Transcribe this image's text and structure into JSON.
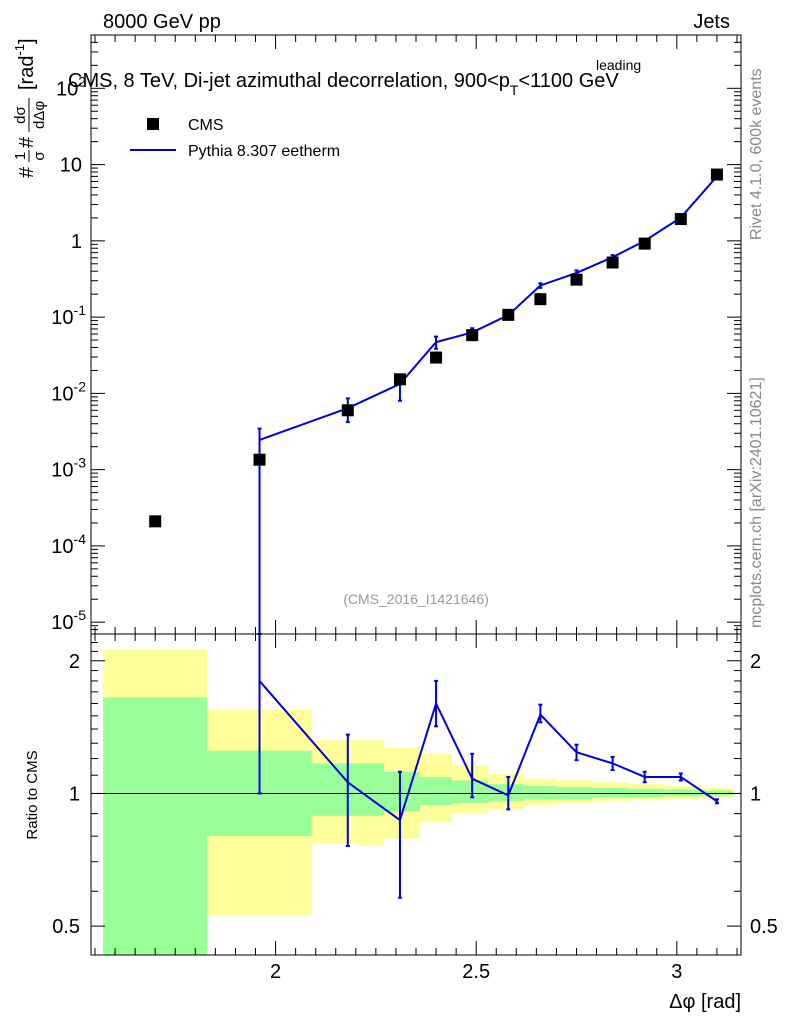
{
  "header": {
    "left_label": "8000 GeV pp",
    "right_label": "Jets"
  },
  "chart_data": [
    {
      "type": "scatter",
      "panel": "main",
      "title_prefix": "CMS, 8 TeV, Di-jet azimuthal decorrelation, 900<p",
      "title_sup": "leading",
      "title_sub": "T",
      "title_suffix": "<1100 GeV",
      "yscale": "log",
      "ylim": [
        7e-06,
        500
      ],
      "xlim": [
        1.54,
        3.16
      ],
      "ylabel": "#frac{1}{σ}#frac{dσ}{dΔφ} [rad⁻¹]",
      "ylabel_parts": {
        "lead": "#",
        "frac1_num": "1",
        "frac1_den": "σ",
        "hash2": "#",
        "frac2_num": "dσ",
        "frac2_den": "dΔφ",
        "unit": "[rad",
        "unit_sup": "-1",
        "unit_close": "]"
      },
      "y_ticks": [
        {
          "base": "10",
          "exp": "-5",
          "value": 1e-05
        },
        {
          "base": "10",
          "exp": "-4",
          "value": 0.0001
        },
        {
          "base": "10",
          "exp": "-3",
          "value": 0.001
        },
        {
          "base": "10",
          "exp": "-2",
          "value": 0.01
        },
        {
          "base": "10",
          "exp": "-1",
          "value": 0.1
        },
        {
          "base": "1",
          "exp": "",
          "value": 1
        },
        {
          "base": "10",
          "exp": "",
          "value": 10
        },
        {
          "base": "10",
          "exp": "2",
          "value": 100
        }
      ],
      "legend": [
        {
          "name": "CMS",
          "marker": "square",
          "color": "#000000"
        },
        {
          "name": "Pythia 8.307 eetherm",
          "marker": "line",
          "color": "#0000dd"
        }
      ],
      "series": [
        {
          "name": "CMS",
          "x": [
            1.7,
            1.96,
            2.18,
            2.31,
            2.4,
            2.49,
            2.58,
            2.66,
            2.75,
            2.84,
            2.92,
            3.01,
            3.1
          ],
          "y": [
            0.00021,
            0.00135,
            0.006,
            0.0153,
            0.0295,
            0.058,
            0.107,
            0.172,
            0.31,
            0.52,
            0.92,
            1.93,
            7.4
          ]
        },
        {
          "name": "Pythia 8.307 eetherm",
          "x": [
            1.96,
            2.18,
            2.31,
            2.4,
            2.49,
            2.58,
            2.66,
            2.75,
            2.84,
            2.92,
            3.01,
            3.1
          ],
          "y": [
            0.00245,
            0.0064,
            0.0133,
            0.047,
            0.063,
            0.106,
            0.26,
            0.38,
            0.61,
            1.0,
            2.02,
            7.0
          ],
          "y_err_low": [
            0.00245,
            0.0022,
            0.0053,
            0.0085,
            0.0085,
            0.012,
            0.018,
            0.03,
            0.04,
            0.05,
            0.08,
            0.2
          ],
          "y_err_high": [
            0.001,
            0.0022,
            0.0026,
            0.0085,
            0.0085,
            0.012,
            0.018,
            0.03,
            0.04,
            0.05,
            0.08,
            0.2
          ]
        }
      ],
      "annotation": "(CMS_2016_I1421646)"
    },
    {
      "type": "line",
      "panel": "ratio",
      "ylabel": "Ratio to CMS",
      "yscale": "log",
      "ylim": [
        0.43,
        2.3
      ],
      "xlim": [
        1.54,
        3.16
      ],
      "xlabel": "Δφ [rad]",
      "x_ticks": [
        {
          "label": "2",
          "value": 2.0
        },
        {
          "label": "2.5",
          "value": 2.5
        },
        {
          "label": "3",
          "value": 3.0
        }
      ],
      "y_ticks": [
        {
          "label": "0.5",
          "value": 0.5
        },
        {
          "label": "1",
          "value": 1.0
        },
        {
          "label": "2",
          "value": 2.0
        }
      ],
      "bands": [
        {
          "x_lo": 1.57,
          "x_hi": 1.83,
          "green_lo": 0.43,
          "green_hi": 1.65,
          "yellow_lo": 0.43,
          "yellow_hi": 2.12
        },
        {
          "x_lo": 1.83,
          "x_hi": 2.09,
          "green_lo": 0.8,
          "green_hi": 1.25,
          "yellow_lo": 0.53,
          "yellow_hi": 1.55
        },
        {
          "x_lo": 2.09,
          "x_hi": 2.2,
          "green_lo": 0.89,
          "green_hi": 1.17,
          "yellow_lo": 0.77,
          "yellow_hi": 1.32
        },
        {
          "x_lo": 2.2,
          "x_hi": 2.27,
          "green_lo": 0.89,
          "green_hi": 1.17,
          "yellow_lo": 0.76,
          "yellow_hi": 1.32
        },
        {
          "x_lo": 2.27,
          "x_hi": 2.36,
          "green_lo": 0.91,
          "green_hi": 1.12,
          "yellow_lo": 0.79,
          "yellow_hi": 1.27
        },
        {
          "x_lo": 2.36,
          "x_hi": 2.44,
          "green_lo": 0.94,
          "green_hi": 1.09,
          "yellow_lo": 0.86,
          "yellow_hi": 1.23
        },
        {
          "x_lo": 2.44,
          "x_hi": 2.53,
          "green_lo": 0.95,
          "green_hi": 1.07,
          "yellow_lo": 0.9,
          "yellow_hi": 1.16
        },
        {
          "x_lo": 2.53,
          "x_hi": 2.62,
          "green_lo": 0.96,
          "green_hi": 1.05,
          "yellow_lo": 0.92,
          "yellow_hi": 1.11
        },
        {
          "x_lo": 2.62,
          "x_hi": 2.7,
          "green_lo": 0.97,
          "green_hi": 1.04,
          "yellow_lo": 0.94,
          "yellow_hi": 1.08
        },
        {
          "x_lo": 2.7,
          "x_hi": 2.79,
          "green_lo": 0.97,
          "green_hi": 1.035,
          "yellow_lo": 0.95,
          "yellow_hi": 1.07
        },
        {
          "x_lo": 2.79,
          "x_hi": 2.88,
          "green_lo": 0.98,
          "green_hi": 1.03,
          "yellow_lo": 0.96,
          "yellow_hi": 1.06
        },
        {
          "x_lo": 2.88,
          "x_hi": 2.97,
          "green_lo": 0.98,
          "green_hi": 1.025,
          "yellow_lo": 0.965,
          "yellow_hi": 1.05
        },
        {
          "x_lo": 2.97,
          "x_hi": 3.06,
          "green_lo": 0.985,
          "green_hi": 1.02,
          "yellow_lo": 0.97,
          "yellow_hi": 1.04
        },
        {
          "x_lo": 3.06,
          "x_hi": 3.14,
          "green_lo": 0.99,
          "green_hi": 1.015,
          "yellow_lo": 0.98,
          "yellow_hi": 1.03
        }
      ],
      "band_colors": {
        "green": "#99ff99",
        "yellow": "#ffff99"
      },
      "series": [
        {
          "name": "Pythia 8.307 eetherm",
          "color": "#0000dd",
          "x": [
            1.96,
            2.18,
            2.31,
            2.4,
            2.49,
            2.58,
            2.66,
            2.75,
            2.84,
            2.92,
            3.01,
            3.1
          ],
          "y": [
            1.8,
            1.06,
            0.87,
            1.6,
            1.08,
            0.99,
            1.51,
            1.24,
            1.17,
            1.09,
            1.09,
            0.96
          ],
          "y_err_low": [
            0.8,
            0.3,
            0.29,
            0.18,
            0.1,
            0.07,
            0.06,
            0.05,
            0.04,
            0.03,
            0.02,
            0.01
          ],
          "y_err_high": [
            0.5,
            0.3,
            0.25,
            0.2,
            0.15,
            0.1,
            0.08,
            0.05,
            0.04,
            0.03,
            0.02,
            0.01
          ]
        }
      ]
    }
  ],
  "side_labels": {
    "rivet": "Rivet 4.1.0,  600k events",
    "mcplots": "mcplots.cern.ch [arXiv:2401.10621]"
  }
}
